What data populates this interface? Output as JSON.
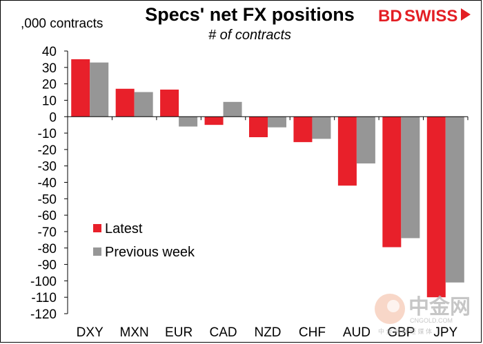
{
  "brand": {
    "logo_text_bd": "BD",
    "logo_text_swiss": "SWISS",
    "logo_color": "#e31e24",
    "watermark_text": "中金网",
    "watermark_domain": "CNGOLD.COM",
    "watermark_sub": "中 金 网 财 经 媒 体"
  },
  "chart_data": {
    "type": "bar",
    "title": "Specs' net FX positions",
    "subtitle": "# of contracts",
    "ylabel": ",000 contracts",
    "categories": [
      "DXY",
      "MXN",
      "EUR",
      "CAD",
      "NZD",
      "CHF",
      "AUD",
      "GBP",
      "JPY"
    ],
    "series": [
      {
        "name": "Latest",
        "color": "#e8202a",
        "values": [
          35,
          17,
          16.5,
          -5,
          -12.5,
          -15.5,
          -42,
          -79.5,
          -110
        ]
      },
      {
        "name": "Previous week",
        "color": "#969696",
        "values": [
          33,
          15,
          -6,
          9,
          -6.5,
          -13.5,
          -28.5,
          -74,
          -101
        ]
      }
    ],
    "ylim": [
      -120,
      40
    ],
    "yticks": [
      40,
      30,
      20,
      10,
      0,
      -10,
      -20,
      -30,
      -40,
      -50,
      -60,
      -70,
      -80,
      -90,
      -100,
      -110,
      -120
    ],
    "legend_position": "lower-left",
    "grid": false
  }
}
